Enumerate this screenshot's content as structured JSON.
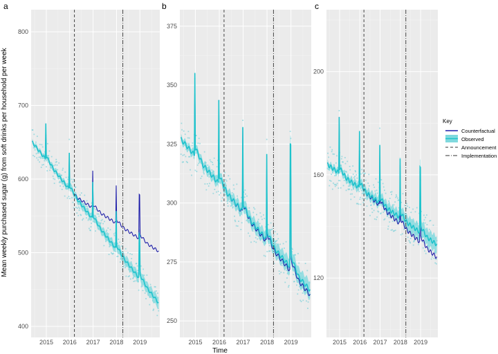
{
  "figure": {
    "ylabel": "Mean weekly purchased sugar (g) from soft drinks per household per week",
    "xlabel": "Time"
  },
  "legend": {
    "title": "Key",
    "items": [
      {
        "label": "Counterfactual",
        "style": "line",
        "color": "#1c1ca8"
      },
      {
        "label": "Observed",
        "style": "ribbon",
        "color": "#1ec3cc"
      },
      {
        "label": "Announcement",
        "style": "dashed",
        "color": "#333333"
      },
      {
        "label": "Implementation",
        "style": "dashdot",
        "color": "#333333"
      }
    ]
  },
  "colors": {
    "counterfactual": "#1c1ca8",
    "observed": "#1ec3cc",
    "ribbon": "#7fd9de",
    "points": "#5fcbd6",
    "vline": "#444444"
  },
  "chart_data": [
    {
      "type": "line",
      "panel": "a",
      "x_ticks": [
        2015,
        2016,
        2017,
        2018,
        2019
      ],
      "y_ticks": [
        400,
        500,
        600,
        700,
        800
      ],
      "xlim": [
        2014.35,
        2019.85
      ],
      "ylim": [
        385,
        830
      ],
      "announcement": 2016.2,
      "implementation": 2018.27,
      "observed": {
        "start": 650,
        "end": 432,
        "peak": 45,
        "peak_last": 52
      },
      "counterfactual": {
        "start": 600,
        "end": 503,
        "peak": 45
      },
      "noise": 12
    },
    {
      "type": "line",
      "panel": "b",
      "x_ticks": [
        2015,
        2016,
        2017,
        2018,
        2019
      ],
      "y_ticks": [
        250,
        275,
        300,
        325,
        350,
        375
      ],
      "xlim": [
        2014.35,
        2019.85
      ],
      "ylim": [
        243,
        382
      ],
      "announcement": 2016.2,
      "implementation": 2018.27,
      "observed": {
        "start": 327,
        "end": 263,
        "peak": 32,
        "peak_last": 46
      },
      "counterfactual": {
        "start": 305,
        "end": 261,
        "peak": 28
      },
      "noise": 6
    },
    {
      "type": "line",
      "panel": "c",
      "x_ticks": [
        2015,
        2016,
        2017,
        2018,
        2019
      ],
      "y_ticks": [
        120,
        160,
        200
      ],
      "xlim": [
        2014.35,
        2019.85
      ],
      "ylim": [
        97,
        224
      ],
      "announcement": 2016.2,
      "implementation": 2018.27,
      "observed": {
        "start": 164,
        "end": 133,
        "peak": 20,
        "peak_last": 22
      },
      "counterfactual": {
        "start": 150,
        "end": 128,
        "peak": 18
      },
      "noise": 5
    }
  ]
}
